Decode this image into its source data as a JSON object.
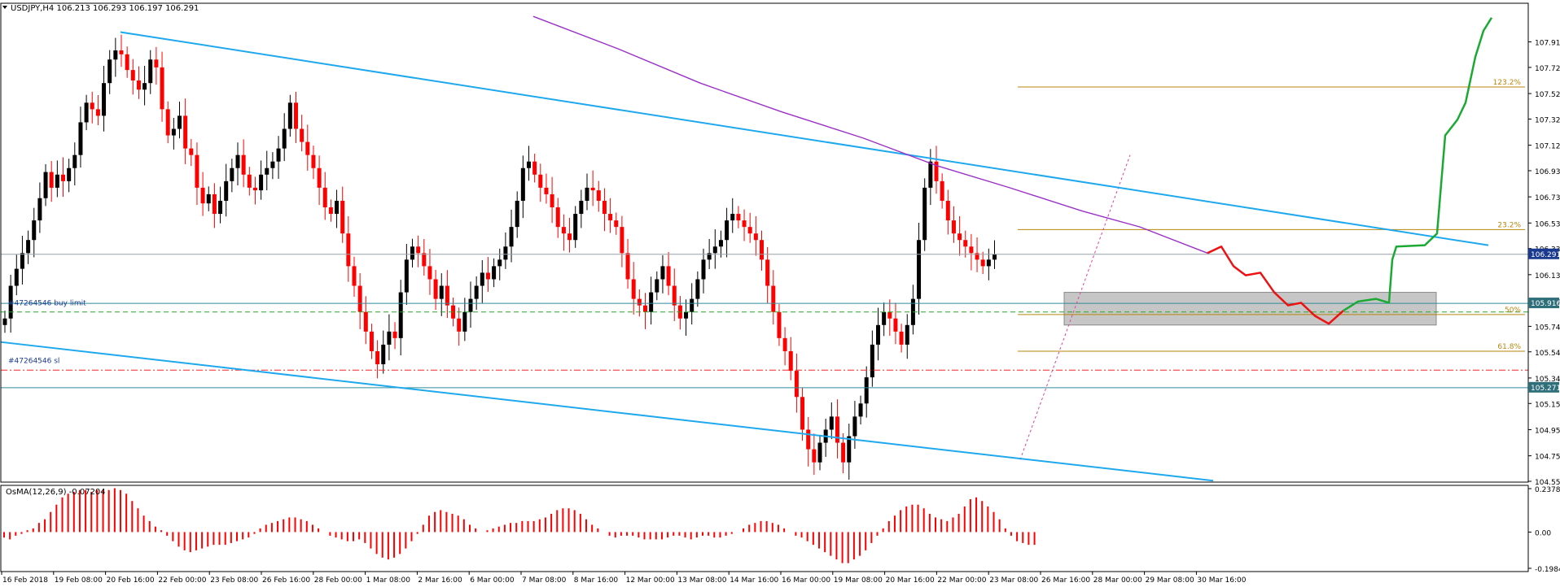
{
  "header": {
    "symbol_line": "USDJPY,H4  106.213 106.293 106.197 106.291",
    "indicator_line": "OsMA(12,26,9) -0.07204"
  },
  "chart_data": [
    {
      "type": "candlestick",
      "title": "USDJPY,H4",
      "ohlc": {
        "open": 106.213,
        "high": 106.293,
        "low": 106.197,
        "close": 106.291
      },
      "ylim": [
        104.555,
        108.111
      ],
      "y_ticks": [
        "107.915",
        "107.720",
        "107.520",
        "107.325",
        "107.125",
        "106.930",
        "106.730",
        "106.530",
        "106.335",
        "106.135",
        "105.935",
        "105.740",
        "105.545",
        "105.345",
        "105.150",
        "104.950",
        "104.750",
        "104.555"
      ],
      "x_ticks": [
        "16 Feb 2018",
        "19 Feb 08:00",
        "20 Feb 16:00",
        "22 Feb 00:00",
        "23 Feb 08:00",
        "26 Feb 16:00",
        "28 Feb 00:00",
        "1 Mar 08:00",
        "2 Mar 16:00",
        "6 Mar 00:00",
        "7 Mar 08:00",
        "8 Mar 16:00",
        "12 Mar 00:00",
        "13 Mar 08:00",
        "14 Mar 16:00",
        "16 Mar 00:00",
        "19 Mar 08:00",
        "20 Mar 16:00",
        "22 Mar 00:00",
        "23 Mar 08:00",
        "26 Mar 16:00",
        "28 Mar 00:00",
        "29 Mar 08:00",
        "30 Mar 16:00"
      ],
      "price_labels": [
        {
          "value": "106.291",
          "color": "#1a3a8f"
        },
        {
          "value": "105.916",
          "color": "#2e6f7a"
        },
        {
          "value": "105.271",
          "color": "#2e6f7a"
        }
      ],
      "fibonacci": [
        {
          "label": "123.2%",
          "value": 107.57
        },
        {
          "label": "23.2%",
          "value": 106.48
        },
        {
          "label": "50%",
          "value": 105.83
        },
        {
          "label": "61.8%",
          "value": 105.55
        }
      ],
      "order_lines": [
        {
          "label": "#47264546 buy limit",
          "value": 105.85
        },
        {
          "label": "#47264546 sl",
          "value": 105.405
        }
      ],
      "horizontal_levels": [
        106.291,
        105.916,
        105.271
      ],
      "colors": {
        "bull": "#000000",
        "bear": "#ff0000",
        "trend": "#1ea8ee",
        "ma": "#9b30c8",
        "fib": "#b8860b",
        "forecast_down": "#ee1111",
        "forecast_up": "#1aaa33",
        "zone": "#a8a8a8"
      }
    },
    {
      "type": "histogram",
      "title": "OsMA(12,26,9)",
      "last_value": -0.07204,
      "ylim": [
        -0.19845,
        0.2378
      ],
      "y_ticks": [
        "0.2378",
        "0.00",
        "-0.19845"
      ],
      "values": [
        -0.03,
        -0.04,
        -0.02,
        -0.01,
        0.01,
        0.02,
        0.05,
        0.07,
        0.11,
        0.15,
        0.19,
        0.21,
        0.22,
        0.23,
        0.23,
        0.22,
        0.23,
        0.23,
        0.23,
        0.24,
        0.23,
        0.21,
        0.17,
        0.13,
        0.09,
        0.06,
        0.03,
        0.01,
        -0.02,
        -0.05,
        -0.08,
        -0.1,
        -0.11,
        -0.1,
        -0.09,
        -0.08,
        -0.07,
        -0.07,
        -0.07,
        -0.06,
        -0.05,
        -0.04,
        -0.03,
        -0.01,
        0.02,
        0.04,
        0.05,
        0.06,
        0.07,
        0.08,
        0.08,
        0.07,
        0.06,
        0.04,
        0.02,
        0.0,
        -0.02,
        -0.03,
        -0.04,
        -0.05,
        -0.05,
        -0.04,
        -0.06,
        -0.09,
        -0.12,
        -0.14,
        -0.15,
        -0.14,
        -0.12,
        -0.09,
        -0.05,
        -0.01,
        0.04,
        0.09,
        0.11,
        0.12,
        0.11,
        0.1,
        0.09,
        0.07,
        0.04,
        0.02,
        0.0,
        0.01,
        0.02,
        0.03,
        0.04,
        0.05,
        0.05,
        0.06,
        0.06,
        0.06,
        0.07,
        0.08,
        0.1,
        0.12,
        0.13,
        0.13,
        0.12,
        0.1,
        0.07,
        0.04,
        0.02,
        0.0,
        -0.02,
        -0.03,
        -0.02,
        -0.02,
        -0.02,
        -0.03,
        -0.04,
        -0.04,
        -0.04,
        -0.04,
        -0.03,
        -0.02,
        -0.02,
        -0.03,
        -0.04,
        -0.03,
        -0.02,
        -0.02,
        -0.03,
        -0.03,
        -0.02,
        -0.01,
        0.0,
        0.02,
        0.04,
        0.05,
        0.06,
        0.06,
        0.05,
        0.04,
        0.02,
        0.0,
        -0.02,
        -0.03,
        -0.05,
        -0.07,
        -0.09,
        -0.11,
        -0.13,
        -0.15,
        -0.17,
        -0.17,
        -0.15,
        -0.13,
        -0.1,
        -0.06,
        -0.02,
        0.02,
        0.06,
        0.09,
        0.12,
        0.14,
        0.15,
        0.15,
        0.13,
        0.1,
        0.08,
        0.07,
        0.06,
        0.08,
        0.1,
        0.14,
        0.18,
        0.19,
        0.17,
        0.14,
        0.11,
        0.07,
        0.02,
        -0.02,
        -0.05,
        -0.06,
        -0.07,
        -0.07
      ]
    }
  ]
}
